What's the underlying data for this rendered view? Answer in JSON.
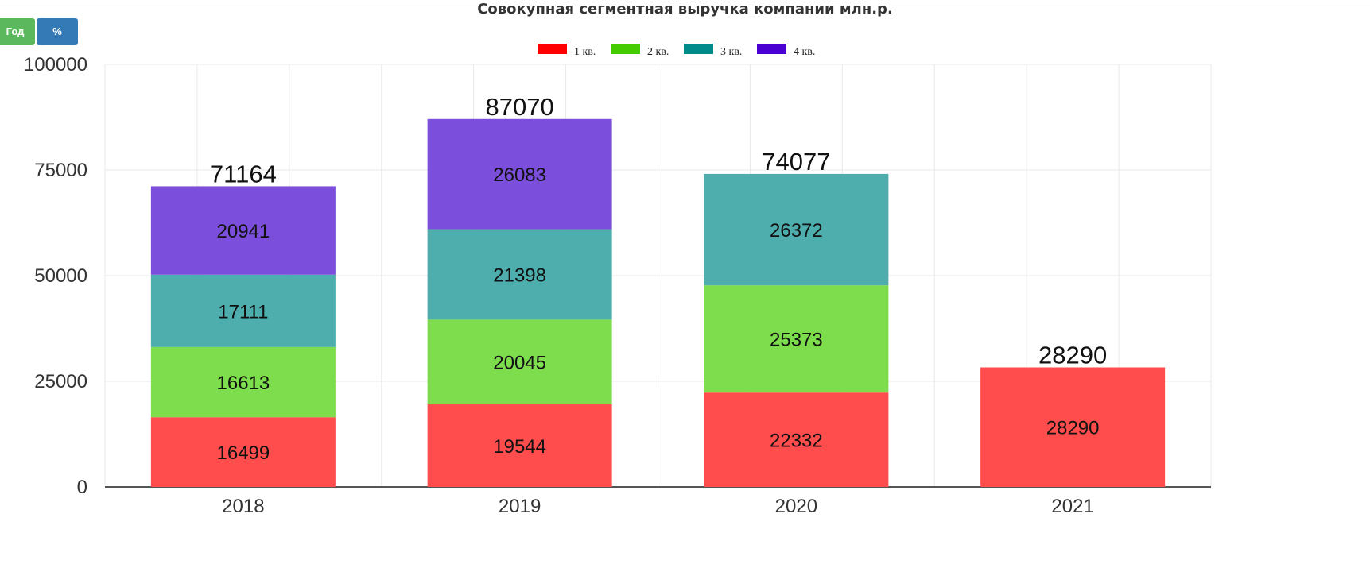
{
  "toolbar": {
    "year_label": "Год",
    "percent_label": "%"
  },
  "chart_data": {
    "type": "bar",
    "stacked": true,
    "title": "Совокупная сегментная выручка компании млн.р.",
    "xlabel": "",
    "ylabel": "",
    "ylim": [
      0,
      100000
    ],
    "yticks": [
      0,
      25000,
      50000,
      75000,
      100000
    ],
    "grid": true,
    "legend_position": "top",
    "categories": [
      "2018",
      "2019",
      "2020",
      "2021"
    ],
    "series": [
      {
        "name": "1 кв.",
        "legend_color": "#ff0000",
        "color": "#ff4d4d",
        "values": [
          16499,
          19544,
          22332,
          28290
        ]
      },
      {
        "name": "2 кв.",
        "legend_color": "#44cc00",
        "color": "#7ddd4c",
        "values": [
          16613,
          20045,
          25373,
          null
        ]
      },
      {
        "name": "3 кв.",
        "legend_color": "#008b8b",
        "color": "#4eadad",
        "values": [
          17111,
          21398,
          26372,
          null
        ]
      },
      {
        "name": "4 кв.",
        "legend_color": "#4b00d2",
        "color": "#7b4fdc",
        "values": [
          20941,
          26083,
          null,
          null
        ]
      }
    ],
    "totals": [
      71164,
      87070,
      74077,
      28290
    ]
  }
}
